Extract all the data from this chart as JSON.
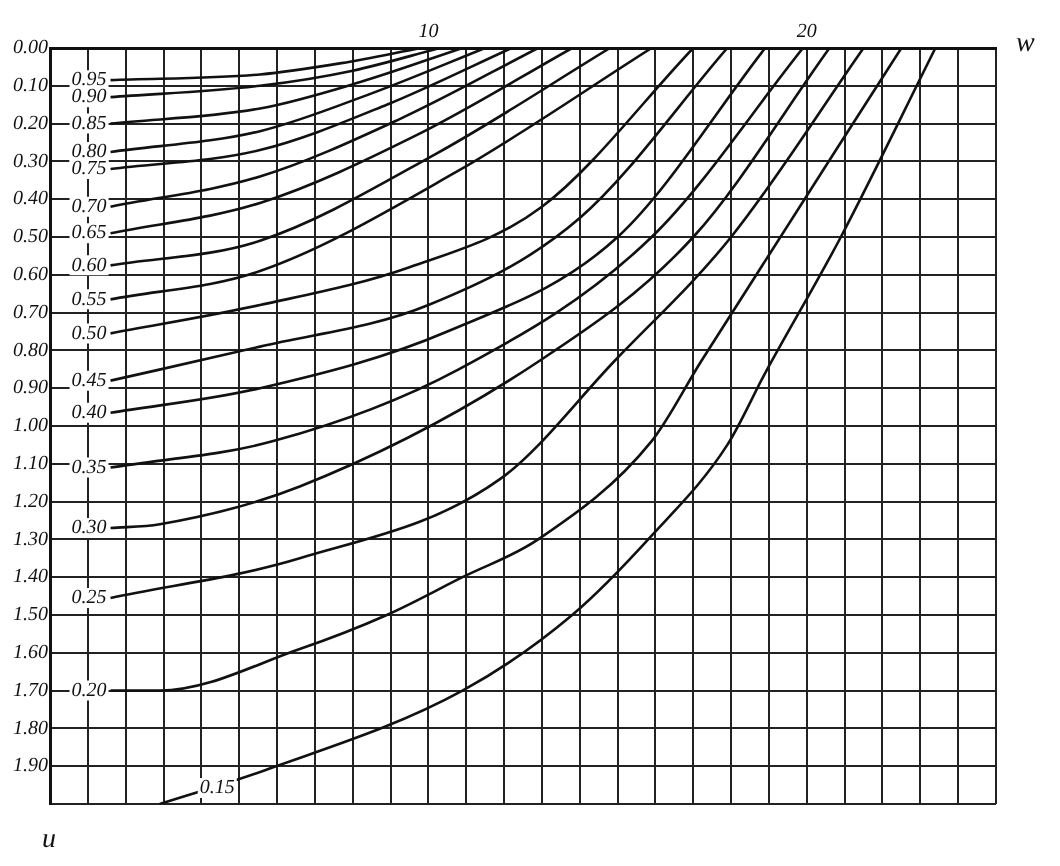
{
  "chart_data": {
    "type": "line",
    "xlabel": "w",
    "ylabel": "u",
    "xlim": [
      0,
      25
    ],
    "ylim": [
      2,
      0
    ],
    "xticks": [
      {
        "value": 0,
        "label": null
      },
      {
        "value": 1,
        "label": null
      },
      {
        "value": 2,
        "label": null
      },
      {
        "value": 3,
        "label": null
      },
      {
        "value": 4,
        "label": null
      },
      {
        "value": 5,
        "label": null
      },
      {
        "value": 6,
        "label": null
      },
      {
        "value": 7,
        "label": null
      },
      {
        "value": 8,
        "label": null
      },
      {
        "value": 9,
        "label": null
      },
      10,
      {
        "value": 11,
        "label": null
      },
      {
        "value": 12,
        "label": null
      },
      {
        "value": 13,
        "label": null
      },
      {
        "value": 14,
        "label": null
      },
      {
        "value": 15,
        "label": null
      },
      {
        "value": 16,
        "label": null
      },
      {
        "value": 17,
        "label": null
      },
      {
        "value": 18,
        "label": null
      },
      {
        "value": 19,
        "label": null
      },
      20,
      {
        "value": 21,
        "label": null
      },
      {
        "value": 22,
        "label": null
      },
      {
        "value": 23,
        "label": null
      },
      {
        "value": 24,
        "label": null
      },
      {
        "value": 25,
        "label": null
      }
    ],
    "yticks": [
      {
        "value": 0,
        "label": "0.00"
      },
      {
        "value": 0.1,
        "label": "0.10"
      },
      {
        "value": 0.2,
        "label": "0.20"
      },
      {
        "value": 0.3,
        "label": "0.30"
      },
      {
        "value": 0.4,
        "label": "0.40"
      },
      {
        "value": 0.5,
        "label": "0.50"
      },
      {
        "value": 0.6,
        "label": "0.60"
      },
      {
        "value": 0.7,
        "label": "0.70"
      },
      {
        "value": 0.8,
        "label": "0.80"
      },
      {
        "value": 0.9,
        "label": "0.90"
      },
      {
        "value": 1,
        "label": "1.00"
      },
      {
        "value": 1.1,
        "label": "1.10"
      },
      {
        "value": 1.2,
        "label": "1.20"
      },
      {
        "value": 1.3,
        "label": "1.30"
      },
      {
        "value": 1.4,
        "label": "1.40"
      },
      {
        "value": 1.5,
        "label": "1.50"
      },
      {
        "value": 1.6,
        "label": "1.60"
      },
      {
        "value": 1.7,
        "label": "1.70"
      },
      {
        "value": 1.8,
        "label": "1.80"
      },
      {
        "value": 1.9,
        "label": "1.90"
      },
      {
        "value": 2,
        "label": null
      }
    ],
    "grid": true,
    "legend": false,
    "marker": "none",
    "line_style": "solid",
    "series": [
      {
        "name": "0.95",
        "color": "#111111",
        "x": [
          1.6,
          5.55,
          7.7,
          9.8
        ],
        "values": [
          0.085,
          0.07,
          0.04,
          0
        ]
      },
      {
        "name": "0.90",
        "color": "#111111",
        "x": [
          1.6,
          5.55,
          8,
          10.3
        ],
        "values": [
          0.13,
          0.1,
          0.06,
          0
        ]
      },
      {
        "name": "0.85",
        "color": "#111111",
        "x": [
          1.6,
          5.55,
          8.2,
          10.9
        ],
        "values": [
          0.2,
          0.16,
          0.09,
          0
        ]
      },
      {
        "name": "0.80",
        "color": "#111111",
        "x": [
          1.6,
          5.55,
          8.5,
          11.5
        ],
        "values": [
          0.275,
          0.22,
          0.12,
          0
        ]
      },
      {
        "name": "0.75",
        "color": "#111111",
        "x": [
          1.6,
          5.55,
          8.9,
          12.2
        ],
        "values": [
          0.32,
          0.27,
          0.15,
          0
        ]
      },
      {
        "name": "0.70",
        "color": "#111111",
        "x": [
          1.6,
          5.55,
          9.2,
          12.9
        ],
        "values": [
          0.42,
          0.34,
          0.19,
          0
        ]
      },
      {
        "name": "0.65",
        "color": "#111111",
        "x": [
          1.6,
          5.55,
          9.7,
          13.8
        ],
        "values": [
          0.49,
          0.41,
          0.23,
          0
        ]
      },
      {
        "name": "0.60",
        "color": "#111111",
        "x": [
          1.6,
          5.55,
          10.2,
          14.8
        ],
        "values": [
          0.575,
          0.51,
          0.28,
          0
        ]
      },
      {
        "name": "0.55",
        "color": "#111111",
        "x": [
          1.6,
          5.55,
          10.7,
          15.9
        ],
        "values": [
          0.665,
          0.59,
          0.33,
          0
        ]
      },
      {
        "name": "0.50",
        "color": "#111111",
        "x": [
          1.6,
          5.55,
          9.5,
          13,
          17
        ],
        "values": [
          0.755,
          0.68,
          0.58,
          0.42,
          0
        ]
      },
      {
        "name": "0.45",
        "color": "#111111",
        "x": [
          1.6,
          5.55,
          10,
          14,
          17.9
        ],
        "values": [
          0.88,
          0.79,
          0.68,
          0.45,
          0
        ]
      },
      {
        "name": "0.40",
        "color": "#111111",
        "x": [
          1.6,
          5.55,
          10.5,
          15,
          18.9
        ],
        "values": [
          0.965,
          0.9,
          0.75,
          0.5,
          0
        ]
      },
      {
        "name": "0.35",
        "color": "#111111",
        "x": [
          1.6,
          5.9,
          10.8,
          15.9,
          19.9
        ],
        "values": [
          1.11,
          1.04,
          0.85,
          0.5,
          0
        ]
      },
      {
        "name": "0.30",
        "color": "#111111",
        "x": [
          1.6,
          2.9,
          6.6,
          12.9,
          17,
          20.6
        ],
        "values": [
          1.27,
          1.26,
          1.16,
          0.83,
          0.5,
          0
        ]
      },
      {
        "name": "0.25",
        "color": "#111111",
        "x": [
          1.6,
          6.6,
          11.9,
          14.9,
          18,
          21.5
        ],
        "values": [
          1.455,
          1.35,
          1.14,
          0.83,
          0.5,
          0
        ]
      },
      {
        "name": "0.20",
        "color": "#111111",
        "x": [
          1.6,
          2.9,
          6.6,
          8.9,
          10.9,
          12.9,
          15.9,
          17.2,
          22.5
        ],
        "values": [
          1.7,
          1.7,
          1.59,
          1.5,
          1.4,
          1.3,
          1.04,
          0.83,
          0
        ]
      },
      {
        "name": "0.15",
        "color": "#111111",
        "x": [
          2.9,
          5.7,
          10.9,
          13.8,
          15.9,
          17.9,
          18.9,
          20.9,
          23.4
        ],
        "values": [
          2,
          1.91,
          1.7,
          1.5,
          1.29,
          1.05,
          0.86,
          0.5,
          0
        ]
      }
    ]
  }
}
